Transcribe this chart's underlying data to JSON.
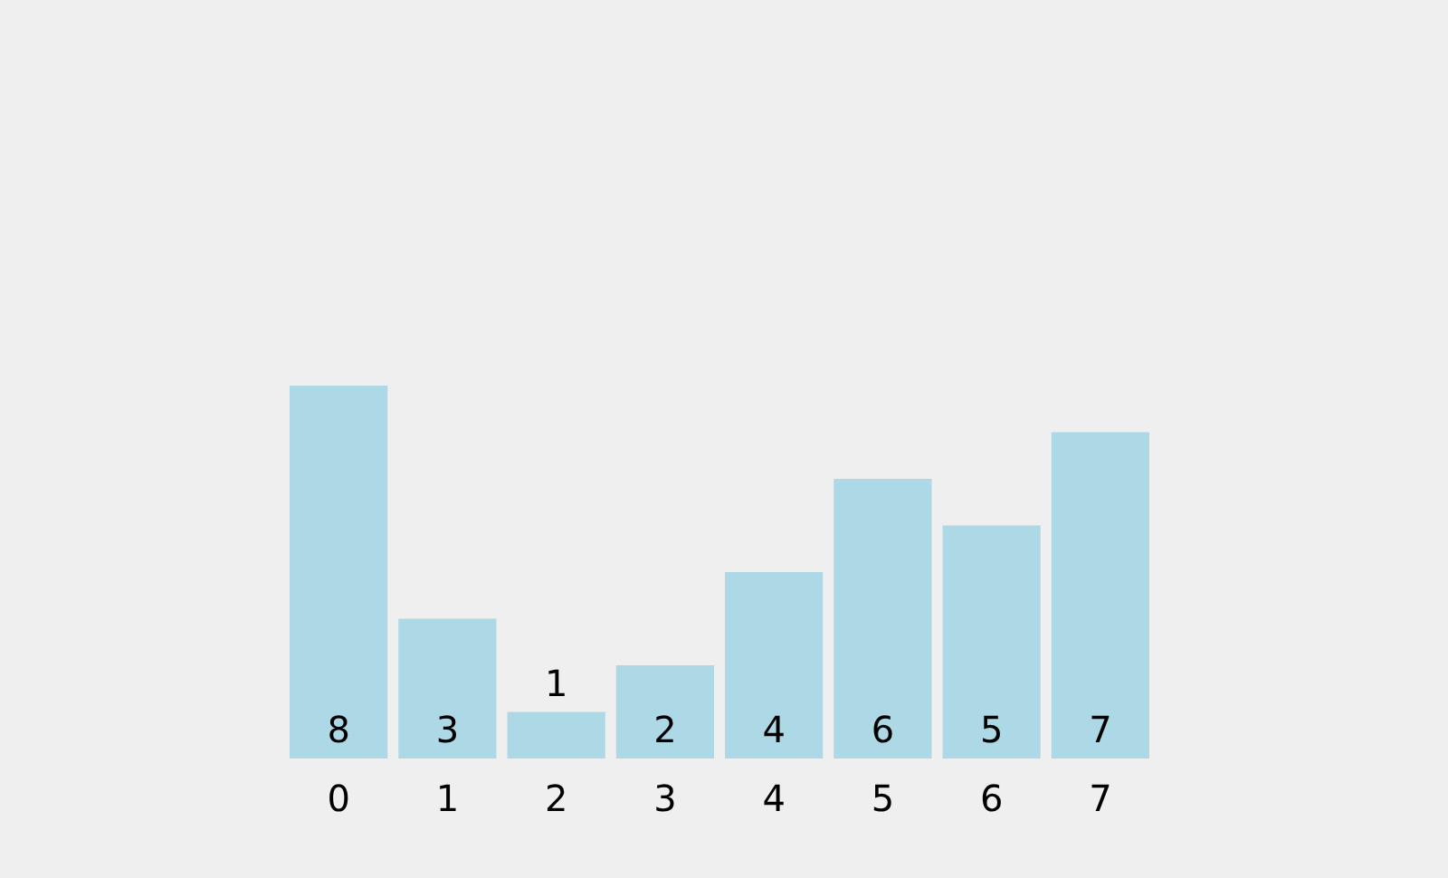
{
  "chart_data": {
    "type": "bar",
    "categories": [
      "0",
      "1",
      "2",
      "3",
      "4",
      "5",
      "6",
      "7"
    ],
    "values": [
      8,
      3,
      1,
      2,
      4,
      6,
      5,
      7
    ],
    "color": "#add8e6",
    "data_labels": true
  }
}
